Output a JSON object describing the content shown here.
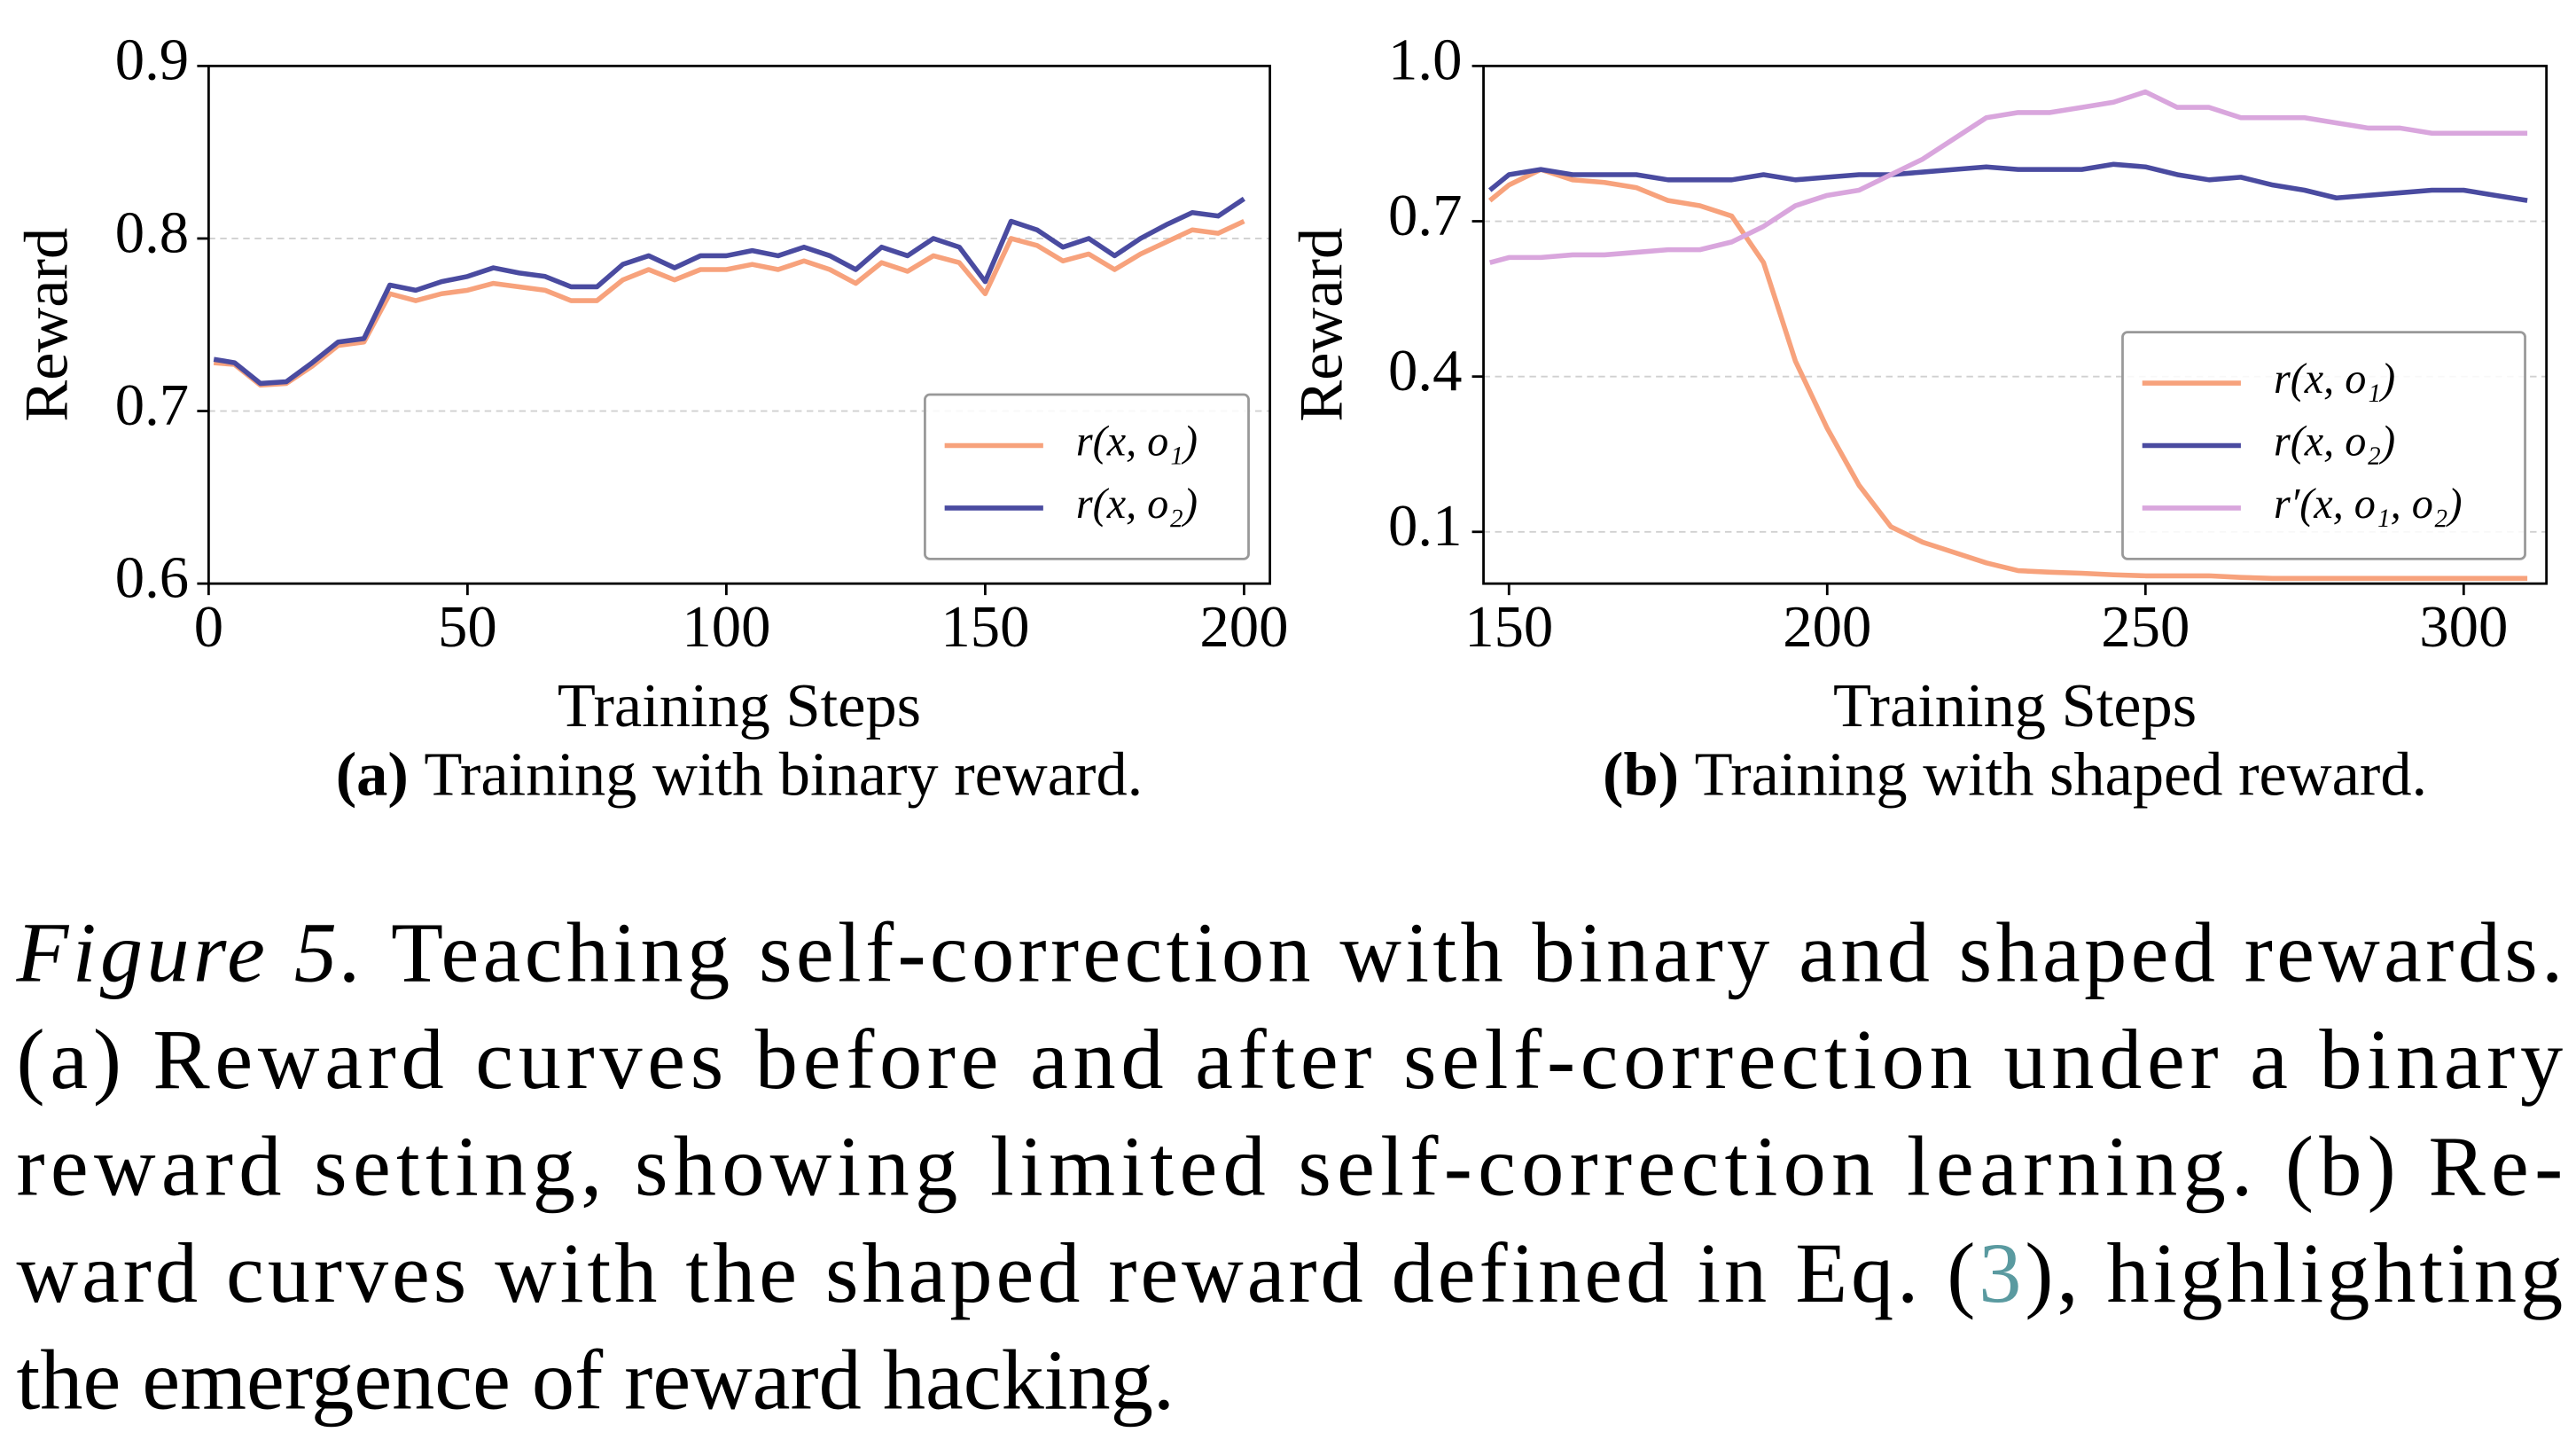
{
  "chart_data": [
    {
      "type": "line",
      "x_label": "Training Steps",
      "y_label": "Reward",
      "subcaption_label": "(a)",
      "subcaption": "Training with binary reward.",
      "xlim": [
        0,
        205
      ],
      "xticks": [
        0,
        50,
        100,
        150,
        200
      ],
      "ylim": [
        0.6,
        0.9
      ],
      "yticks": [
        0.6,
        0.7,
        0.8,
        0.9
      ],
      "grid": true,
      "legend": "lower right",
      "x": [
        1,
        5,
        10,
        15,
        20,
        25,
        30,
        35,
        40,
        45,
        50,
        55,
        60,
        65,
        70,
        75,
        80,
        85,
        90,
        95,
        100,
        105,
        110,
        115,
        120,
        125,
        130,
        135,
        140,
        145,
        150,
        155,
        160,
        165,
        170,
        175,
        180,
        185,
        190,
        195,
        200
      ],
      "series": [
        {
          "name": "r(x, o₁)",
          "color": "#f7a27c",
          "values": [
            0.728,
            0.727,
            0.715,
            0.716,
            0.726,
            0.738,
            0.74,
            0.768,
            0.764,
            0.768,
            0.77,
            0.774,
            0.772,
            0.77,
            0.764,
            0.764,
            0.776,
            0.782,
            0.776,
            0.782,
            0.782,
            0.785,
            0.782,
            0.787,
            0.782,
            0.774,
            0.786,
            0.781,
            0.79,
            0.786,
            0.768,
            0.8,
            0.796,
            0.787,
            0.791,
            0.782,
            0.791,
            0.798,
            0.805,
            0.803,
            0.81
          ]
        },
        {
          "name": "r(x, o₂)",
          "color": "#4a4ba0",
          "values": [
            0.73,
            0.728,
            0.716,
            0.717,
            0.728,
            0.74,
            0.742,
            0.773,
            0.77,
            0.775,
            0.778,
            0.783,
            0.78,
            0.778,
            0.772,
            0.772,
            0.785,
            0.79,
            0.783,
            0.79,
            0.79,
            0.793,
            0.79,
            0.795,
            0.79,
            0.782,
            0.795,
            0.79,
            0.8,
            0.795,
            0.775,
            0.81,
            0.805,
            0.795,
            0.8,
            0.79,
            0.8,
            0.808,
            0.815,
            0.813,
            0.823
          ]
        }
      ]
    },
    {
      "type": "line",
      "x_label": "Training Steps",
      "y_label": "Reward",
      "subcaption_label": "(b)",
      "subcaption": "Training with shaped reward.",
      "xlim": [
        146,
        313
      ],
      "xticks": [
        150,
        200,
        250,
        300
      ],
      "ylim": [
        0,
        1
      ],
      "yticks": [
        0.1,
        0.4,
        0.7,
        {
          "value": 1,
          "label": "1.0"
        }
      ],
      "grid": true,
      "legend": "lower right",
      "x": [
        147,
        150,
        155,
        160,
        165,
        170,
        175,
        180,
        185,
        190,
        195,
        200,
        205,
        210,
        215,
        220,
        225,
        230,
        235,
        240,
        245,
        250,
        255,
        260,
        265,
        270,
        275,
        280,
        285,
        290,
        295,
        300,
        305,
        310
      ],
      "series": [
        {
          "name": "r(x, o₁)",
          "color": "#f7a27c",
          "values": [
            0.74,
            0.77,
            0.8,
            0.78,
            0.775,
            0.765,
            0.74,
            0.73,
            0.71,
            0.62,
            0.43,
            0.3,
            0.19,
            0.11,
            0.08,
            0.06,
            0.04,
            0.025,
            0.022,
            0.02,
            0.017,
            0.015,
            0.015,
            0.015,
            0.012,
            0.01,
            0.01,
            0.01,
            0.01,
            0.01,
            0.01,
            0.01,
            0.01,
            0.01
          ]
        },
        {
          "name": "r(x, o₂)",
          "color": "#4a4ba0",
          "values": [
            0.76,
            0.79,
            0.8,
            0.79,
            0.79,
            0.79,
            0.78,
            0.78,
            0.78,
            0.79,
            0.78,
            0.785,
            0.79,
            0.79,
            0.795,
            0.8,
            0.805,
            0.8,
            0.8,
            0.8,
            0.81,
            0.805,
            0.79,
            0.78,
            0.785,
            0.77,
            0.76,
            0.745,
            0.75,
            0.755,
            0.76,
            0.76,
            0.75,
            0.74
          ]
        },
        {
          "name": "r′(x, o₁, o₂)",
          "color": "#d9a6dd",
          "values": [
            0.62,
            0.63,
            0.63,
            0.635,
            0.635,
            0.64,
            0.645,
            0.645,
            0.66,
            0.69,
            0.73,
            0.75,
            0.76,
            0.79,
            0.82,
            0.86,
            0.9,
            0.91,
            0.91,
            0.92,
            0.93,
            0.95,
            0.92,
            0.92,
            0.9,
            0.9,
            0.9,
            0.89,
            0.88,
            0.88,
            0.87,
            0.87,
            0.87,
            0.87
          ]
        }
      ]
    }
  ],
  "caption": {
    "label": "Figure 5.",
    "line_1": "Teaching self-correction with binary and shaped rewards.",
    "line_2": "(a) Reward curves before and after self-correction under a binary",
    "line_3": "reward setting, showing limited self-correction learning. (b) Re-",
    "line_4_start": "ward curves with the shaped reward defined in Eq. (",
    "ref": "3",
    "line_4_end": "), highlighting",
    "line_5": "the emergence of reward hacking."
  }
}
